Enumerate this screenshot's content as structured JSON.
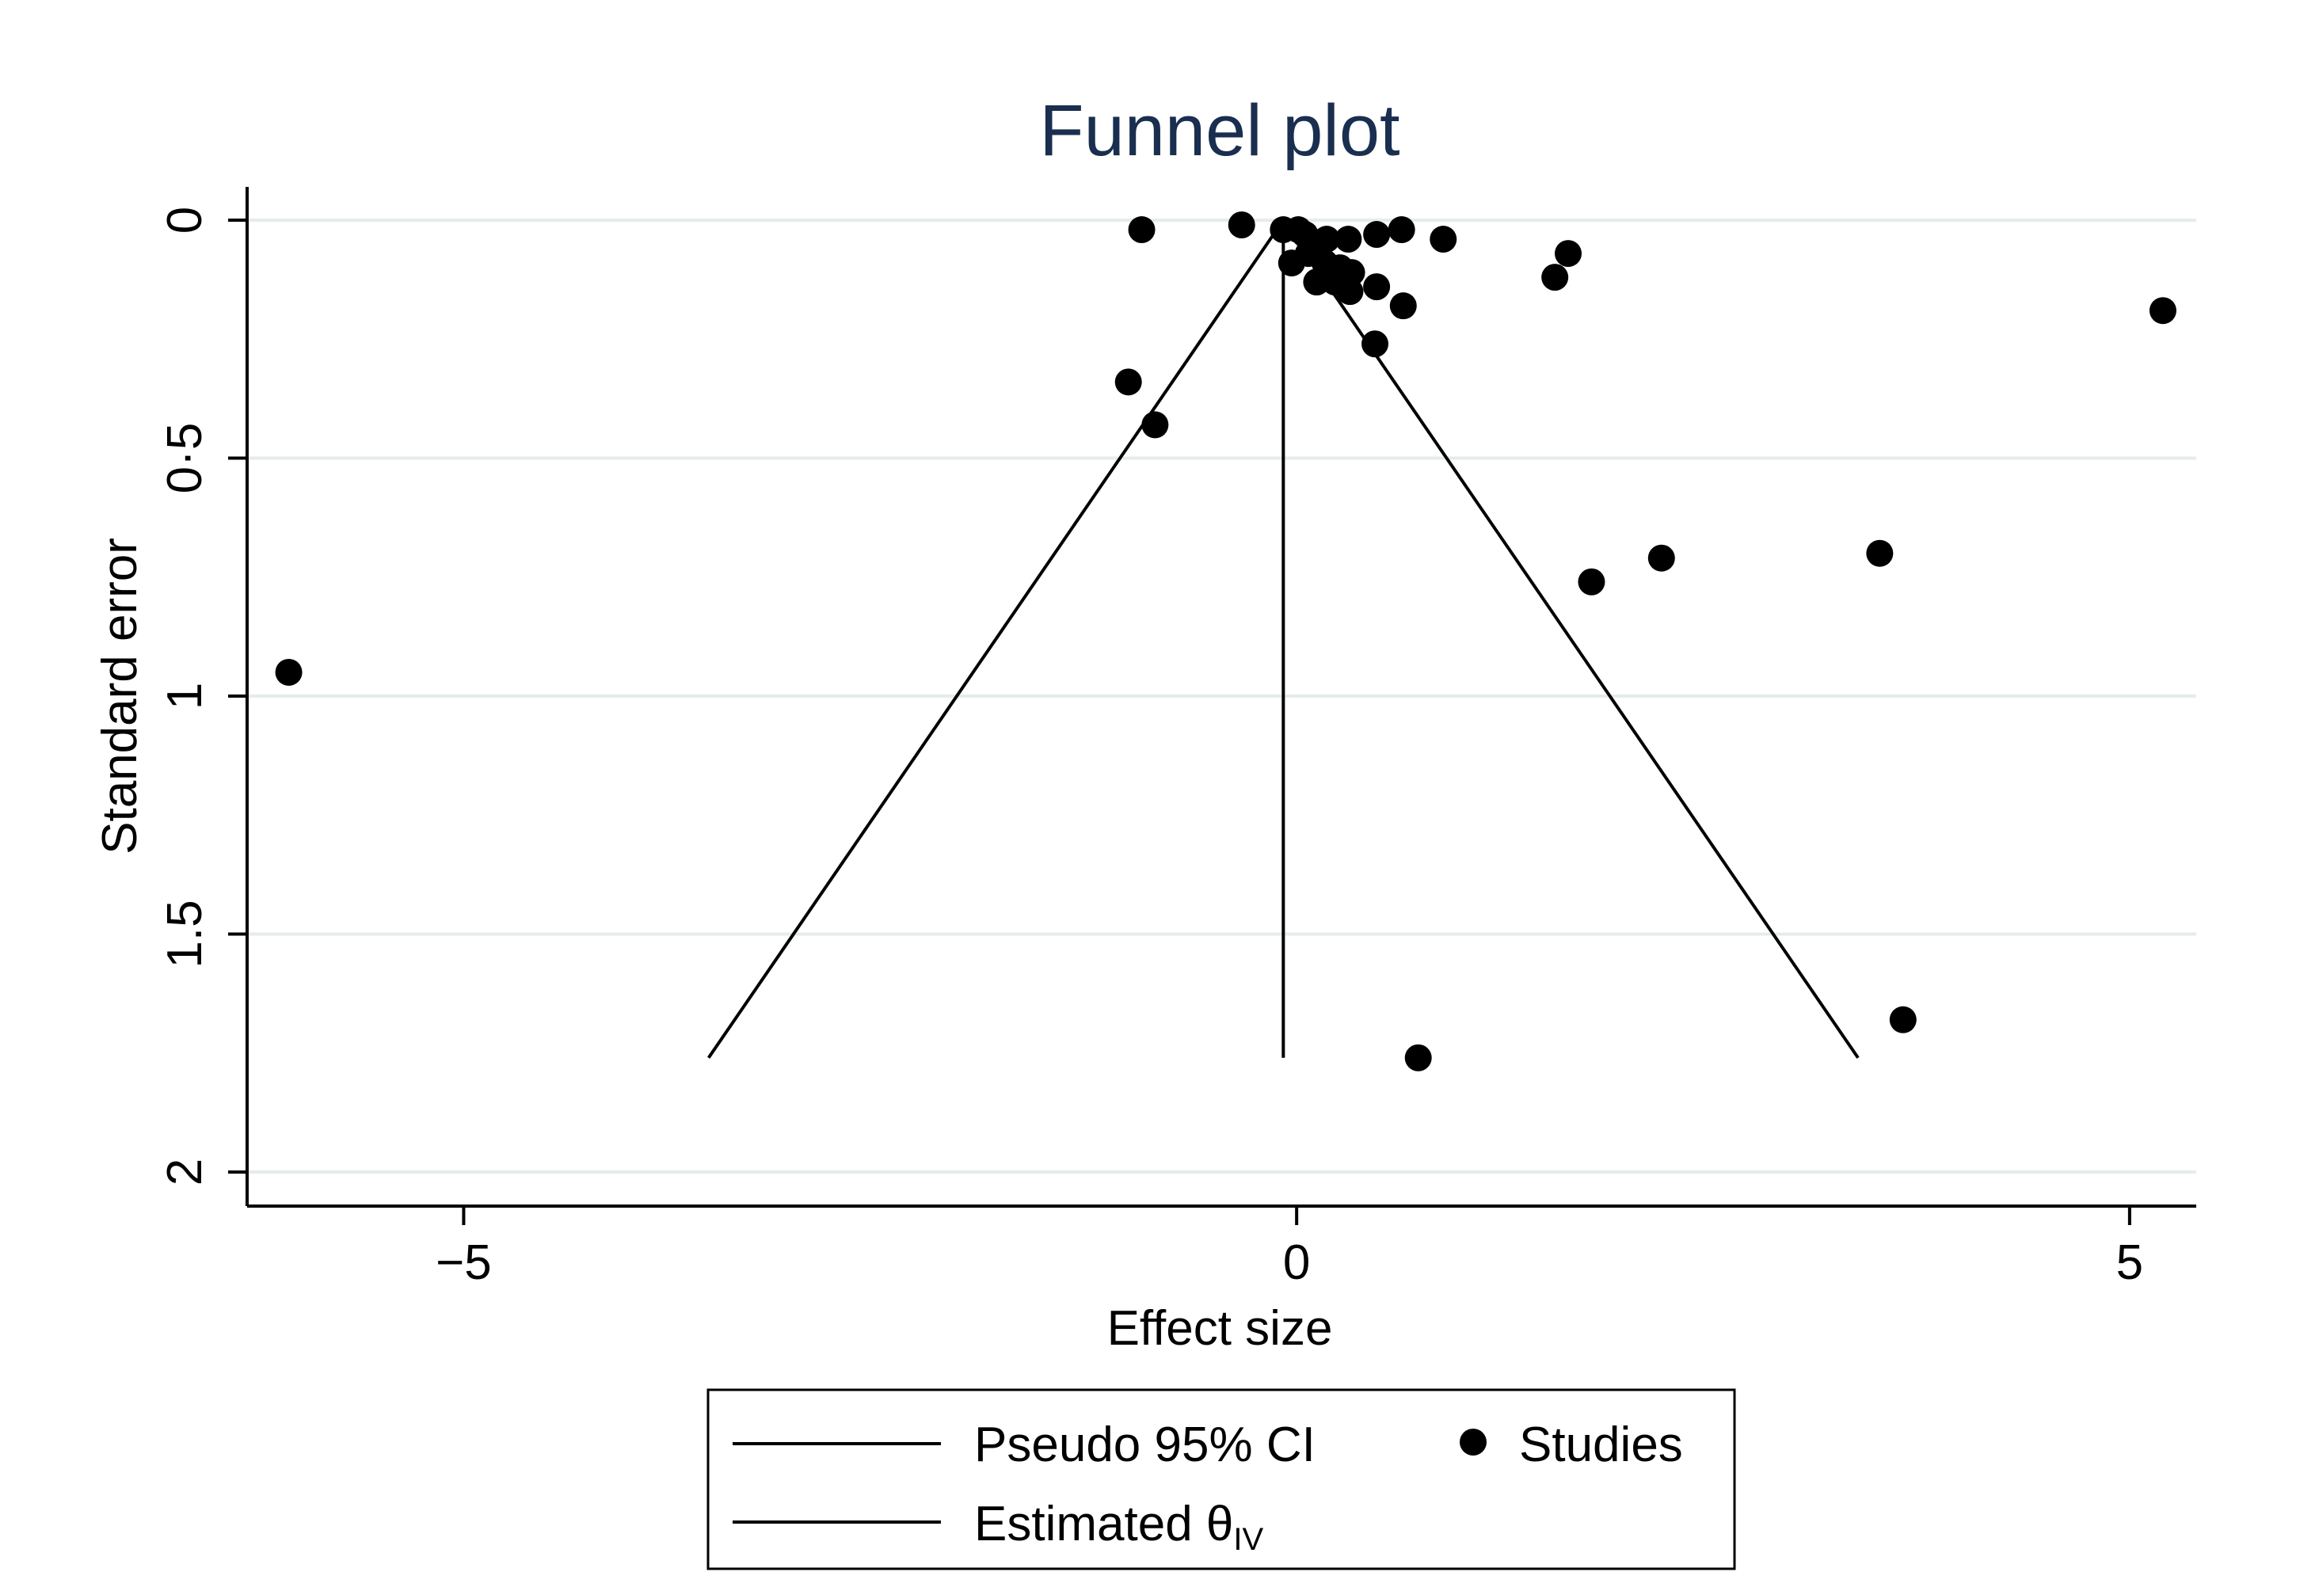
{
  "chart_data": {
    "type": "scatter",
    "title": "Funnel plot",
    "xlabel": "Effect size",
    "ylabel": "Standard error",
    "xlim": [
      -6.3,
      5.4
    ],
    "ylim": [
      0,
      2.07
    ],
    "y_reversed": true,
    "grid": true,
    "x_ticks": [
      -5,
      0,
      5
    ],
    "x_tick_labels": [
      "−5",
      "0",
      "5"
    ],
    "y_ticks": [
      0,
      0.5,
      1,
      1.5,
      2
    ],
    "y_tick_labels": [
      "0",
      "0·5",
      "1",
      "1.5",
      "2"
    ],
    "estimate": -0.08,
    "ci_max_se": 1.76,
    "ci_bounds_at_max_se": [
      -3.53,
      3.37
    ],
    "series": [
      {
        "name": "Studies",
        "points": [
          {
            "x": -0.93,
            "y": 0.02
          },
          {
            "x": -0.33,
            "y": 0.01
          },
          {
            "x": -0.08,
            "y": 0.02
          },
          {
            "x": 0.01,
            "y": 0.02
          },
          {
            "x": 0.05,
            "y": 0.03
          },
          {
            "x": 0.1,
            "y": 0.05
          },
          {
            "x": 0.18,
            "y": 0.04
          },
          {
            "x": 0.31,
            "y": 0.04
          },
          {
            "x": 0.48,
            "y": 0.03
          },
          {
            "x": 0.63,
            "y": 0.02
          },
          {
            "x": 0.88,
            "y": 0.04
          },
          {
            "x": -0.03,
            "y": 0.09
          },
          {
            "x": 0.07,
            "y": 0.07
          },
          {
            "x": 0.17,
            "y": 0.09
          },
          {
            "x": 0.26,
            "y": 0.1
          },
          {
            "x": 0.33,
            "y": 0.11
          },
          {
            "x": 0.12,
            "y": 0.13
          },
          {
            "x": 0.23,
            "y": 0.13
          },
          {
            "x": 0.32,
            "y": 0.15
          },
          {
            "x": 0.48,
            "y": 0.14
          },
          {
            "x": 0.64,
            "y": 0.18
          },
          {
            "x": 0.47,
            "y": 0.26
          },
          {
            "x": 1.63,
            "y": 0.07
          },
          {
            "x": 1.55,
            "y": 0.12
          },
          {
            "x": 5.2,
            "y": 0.19
          },
          {
            "x": -1.01,
            "y": 0.34
          },
          {
            "x": -0.85,
            "y": 0.43
          },
          {
            "x": 1.77,
            "y": 0.76
          },
          {
            "x": 2.19,
            "y": 0.71
          },
          {
            "x": 3.5,
            "y": 0.7
          },
          {
            "x": -6.05,
            "y": 0.95
          },
          {
            "x": 3.64,
            "y": 1.68
          },
          {
            "x": 0.73,
            "y": 1.76
          }
        ]
      }
    ],
    "legend": {
      "position": "bottom",
      "entries": [
        {
          "label": "Pseudo 95% CI",
          "symbol": "line"
        },
        {
          "label": "Studies",
          "symbol": "marker"
        },
        {
          "label": "Estimated θ",
          "subscript": "IV",
          "symbol": "line"
        }
      ]
    },
    "colors": {
      "title": "#1a2e4f",
      "grid": "#e6ebeb",
      "ink": "#000000"
    }
  }
}
